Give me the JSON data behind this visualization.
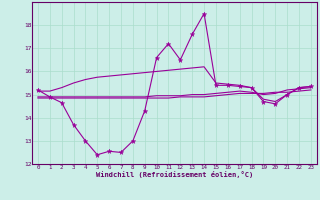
{
  "xlabel": "Windchill (Refroidissement éolien,°C)",
  "background_color": "#cceee8",
  "grid_color": "#aaddcc",
  "line_color": "#990099",
  "xlim": [
    -0.5,
    23.5
  ],
  "ylim": [
    12,
    19
  ],
  "yticks": [
    12,
    13,
    14,
    15,
    16,
    17,
    18
  ],
  "xticks": [
    0,
    1,
    2,
    3,
    4,
    5,
    6,
    7,
    8,
    9,
    10,
    11,
    12,
    13,
    14,
    15,
    16,
    17,
    18,
    19,
    20,
    21,
    22,
    23
  ],
  "line1_x": [
    0,
    1,
    2,
    3,
    4,
    5,
    6,
    7,
    8,
    9,
    10,
    11,
    12,
    13,
    14,
    15,
    16,
    17,
    18,
    19,
    20,
    21,
    22,
    23
  ],
  "line1_y": [
    15.2,
    14.9,
    14.65,
    13.7,
    13.0,
    12.4,
    12.55,
    12.5,
    13.0,
    14.3,
    16.6,
    17.2,
    16.5,
    17.6,
    18.5,
    15.4,
    15.4,
    15.35,
    15.3,
    14.7,
    14.6,
    15.0,
    15.3,
    15.35
  ],
  "line2_x": [
    0,
    1,
    2,
    3,
    4,
    5,
    6,
    7,
    8,
    9,
    10,
    11,
    12,
    13,
    14,
    15,
    16,
    17,
    18,
    19,
    20,
    21,
    22,
    23
  ],
  "line2_y": [
    14.85,
    14.85,
    14.85,
    14.85,
    14.85,
    14.85,
    14.85,
    14.85,
    14.85,
    14.85,
    14.85,
    14.85,
    14.9,
    14.9,
    14.9,
    14.95,
    15.0,
    15.05,
    15.05,
    15.05,
    15.1,
    15.1,
    15.15,
    15.2
  ],
  "line3_x": [
    0,
    1,
    2,
    3,
    4,
    5,
    6,
    7,
    8,
    9,
    10,
    11,
    12,
    13,
    14,
    15,
    16,
    17,
    18,
    19,
    20,
    21,
    22,
    23
  ],
  "line3_y": [
    14.9,
    14.9,
    14.9,
    14.9,
    14.9,
    14.9,
    14.9,
    14.9,
    14.9,
    14.9,
    14.95,
    14.95,
    14.95,
    15.0,
    15.0,
    15.05,
    15.1,
    15.15,
    15.1,
    15.0,
    15.05,
    15.2,
    15.25,
    15.3
  ],
  "line4_x": [
    0,
    1,
    2,
    3,
    4,
    5,
    6,
    7,
    8,
    9,
    10,
    11,
    12,
    13,
    14,
    15,
    16,
    17,
    18,
    19,
    20,
    21,
    22,
    23
  ],
  "line4_y": [
    15.15,
    15.15,
    15.3,
    15.5,
    15.65,
    15.75,
    15.8,
    15.85,
    15.9,
    15.95,
    16.0,
    16.05,
    16.1,
    16.15,
    16.2,
    15.5,
    15.45,
    15.4,
    15.3,
    14.8,
    14.7,
    15.0,
    15.3,
    15.35
  ]
}
